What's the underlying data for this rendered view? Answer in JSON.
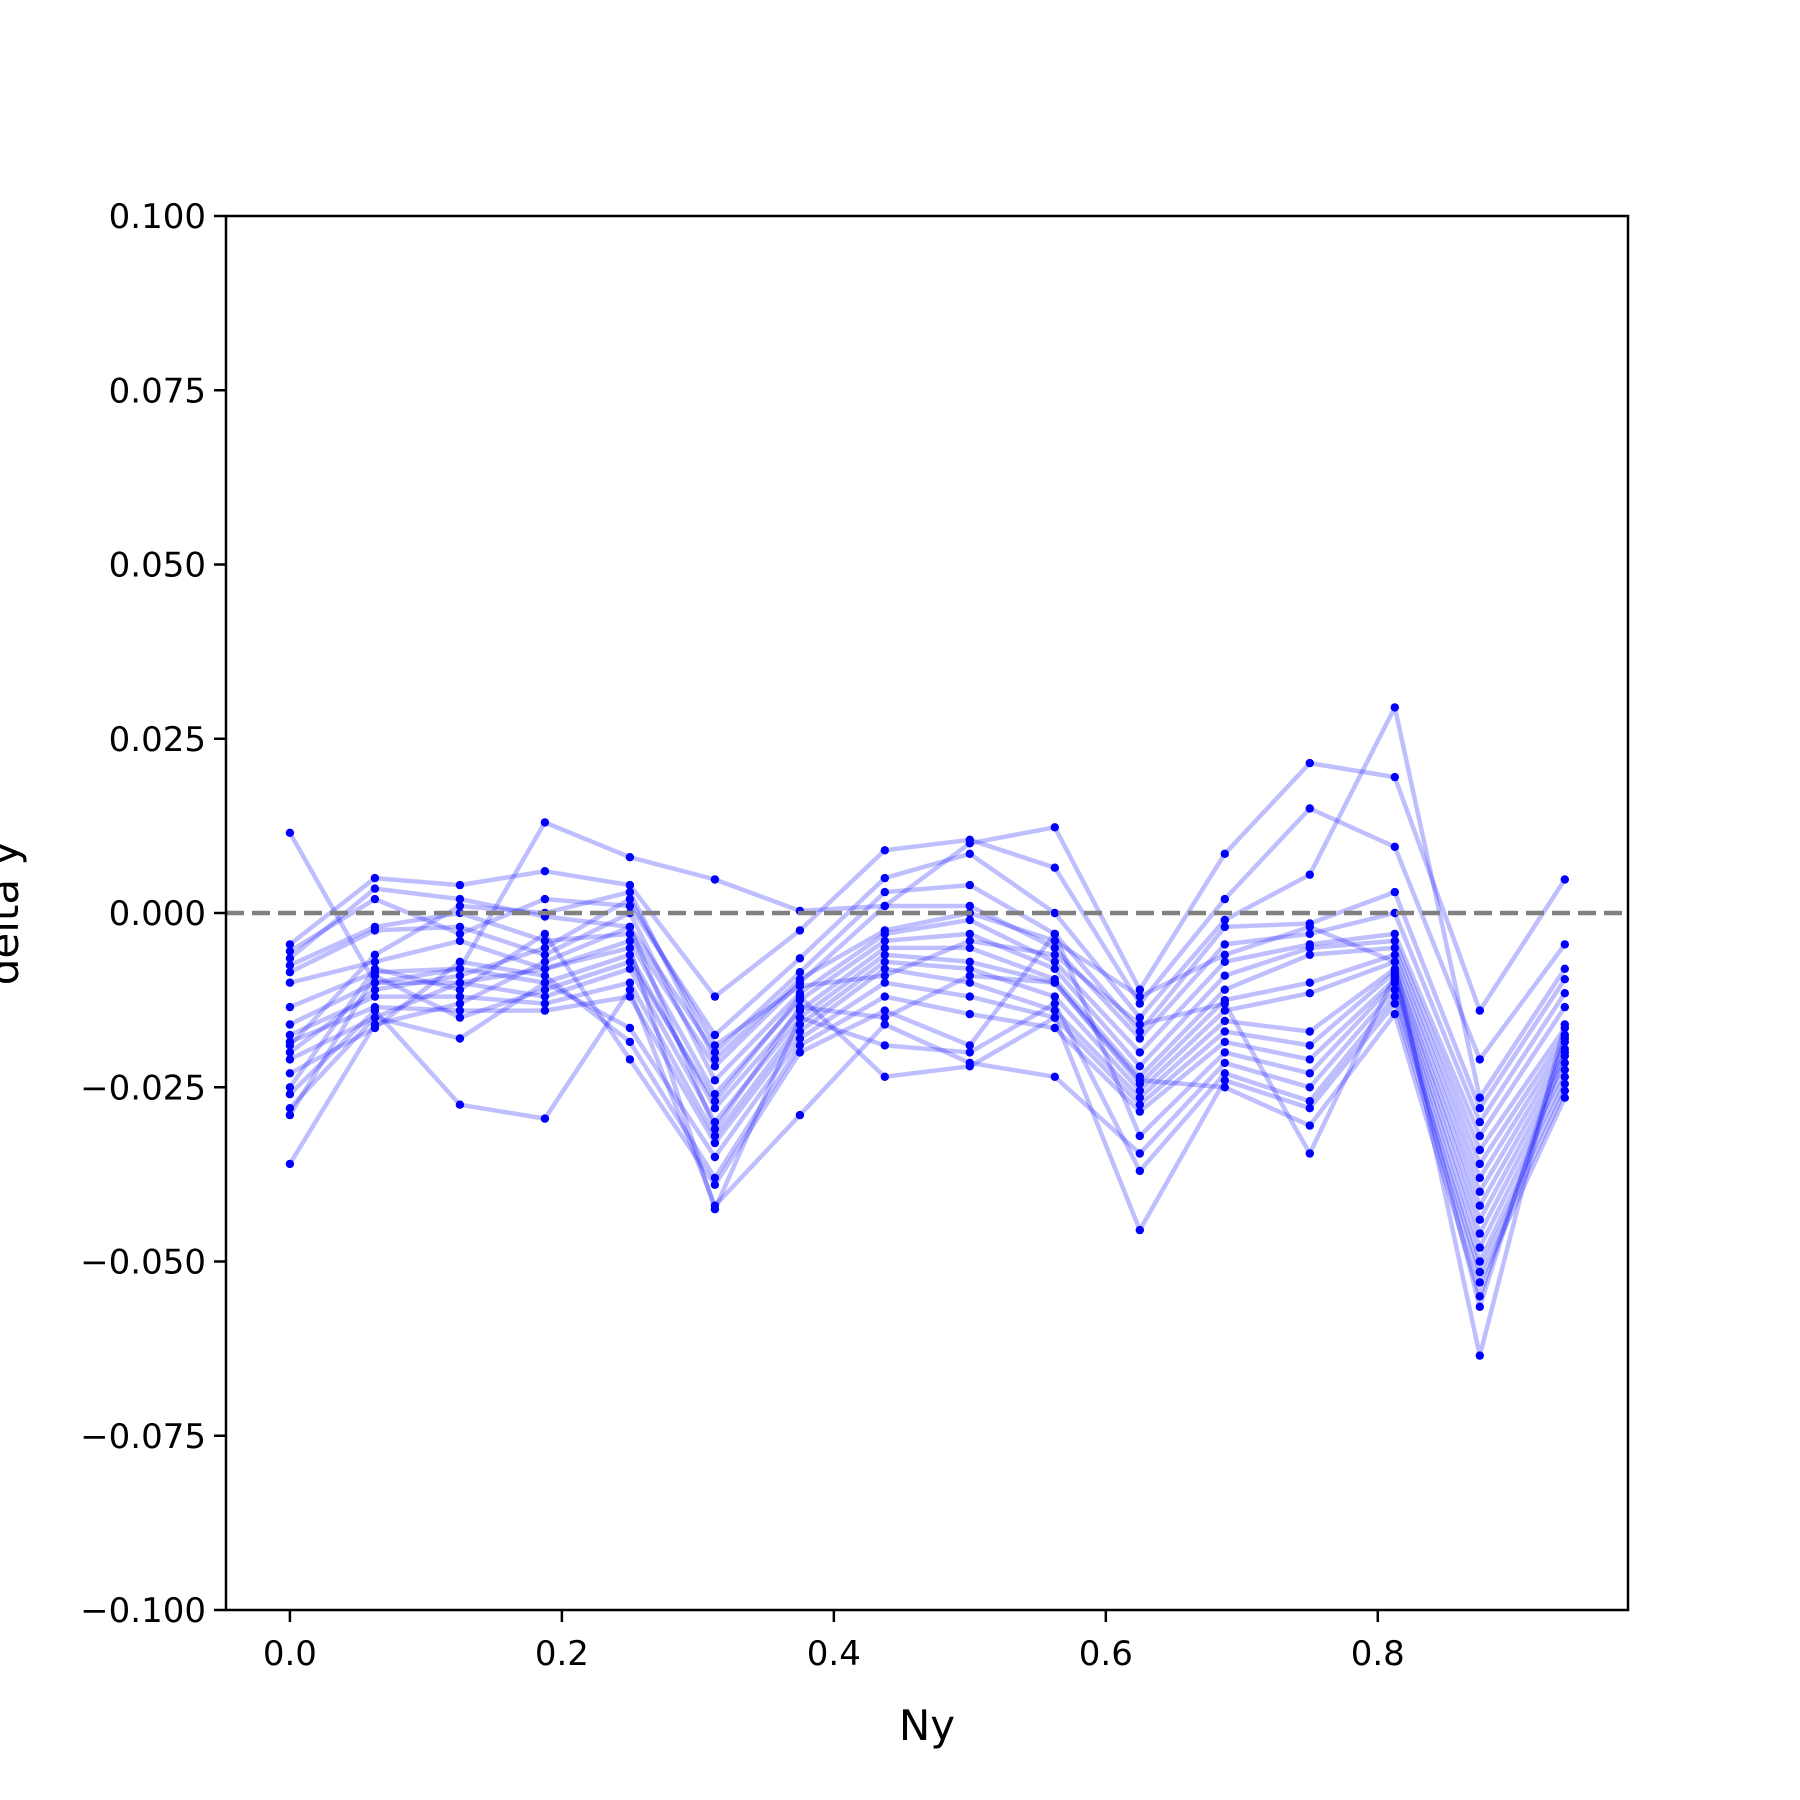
{
  "chart_data": {
    "type": "line",
    "xlabel": "Ny",
    "ylabel": "delta y",
    "xlim": [
      -0.047,
      0.984
    ],
    "ylim": [
      -0.1,
      0.1
    ],
    "x_ticks": [
      0.0,
      0.2,
      0.4,
      0.6,
      0.8
    ],
    "x_tick_labels": [
      "0.0",
      "0.2",
      "0.4",
      "0.6",
      "0.8"
    ],
    "y_ticks": [
      -0.1,
      -0.075,
      -0.05,
      -0.025,
      0.0,
      0.025,
      0.05,
      0.075,
      0.1
    ],
    "y_tick_labels": [
      "−0.100",
      "−0.075",
      "−0.050",
      "−0.025",
      "0.000",
      "0.025",
      "0.050",
      "0.075",
      "0.100"
    ],
    "reference_line": {
      "y": 0.0,
      "style": "dashed",
      "color": "#808080"
    },
    "grid": false,
    "legend": "none",
    "line_color": "#0000ff",
    "line_alpha": 0.25,
    "marker_color": "#0000ff",
    "x": [
      0.0,
      0.0625,
      0.125,
      0.1875,
      0.25,
      0.3125,
      0.375,
      0.4375,
      0.5,
      0.5625,
      0.625,
      0.6875,
      0.75,
      0.8125,
      0.875,
      0.9375
    ],
    "series": [
      {
        "values": [
          0.0115,
          -0.01,
          -0.008,
          0.013,
          0.008,
          0.0048,
          0.0003,
          0.001,
          0.01,
          0.0123,
          -0.011,
          0.0085,
          0.0215,
          0.0195,
          -0.014,
          0.0048
        ]
      },
      {
        "values": [
          -0.0045,
          0.005,
          0.004,
          0.006,
          0.004,
          -0.012,
          -0.0025,
          0.009,
          0.0105,
          0.0065,
          -0.013,
          0.002,
          0.015,
          0.0095,
          -0.021,
          -0.0045
        ]
      },
      {
        "values": [
          -0.0055,
          0.002,
          -0.003,
          0.002,
          0.001,
          -0.0175,
          -0.0065,
          0.005,
          0.0085,
          0.0,
          -0.015,
          -0.001,
          0.0055,
          0.0295,
          -0.0265,
          -0.008
        ]
      },
      {
        "values": [
          -0.0065,
          0.0035,
          0.002,
          -0.0005,
          -0.002,
          -0.02,
          -0.0085,
          0.003,
          0.004,
          -0.003,
          -0.017,
          -0.002,
          -0.0015,
          0.003,
          -0.028,
          -0.0095
        ]
      },
      {
        "values": [
          -0.0075,
          -0.002,
          0.0,
          -0.004,
          -0.003,
          -0.022,
          -0.01,
          0.001,
          0.001,
          -0.005,
          -0.018,
          -0.0045,
          -0.003,
          0.0,
          -0.03,
          -0.0115
        ]
      },
      {
        "values": [
          -0.0085,
          -0.0025,
          -0.002,
          -0.006,
          0.0,
          -0.024,
          -0.0115,
          -0.003,
          -0.001,
          -0.007,
          -0.02,
          -0.007,
          -0.0045,
          -0.003,
          -0.032,
          -0.0135
        ]
      },
      {
        "values": [
          -0.01,
          -0.007,
          -0.004,
          -0.008,
          -0.004,
          -0.026,
          -0.0125,
          -0.004,
          -0.003,
          -0.008,
          -0.022,
          -0.009,
          -0.005,
          -0.004,
          -0.034,
          -0.0165
        ]
      },
      {
        "values": [
          -0.0135,
          -0.0085,
          -0.008,
          -0.01,
          -0.006,
          -0.028,
          -0.014,
          -0.005,
          -0.005,
          -0.0095,
          -0.0235,
          -0.011,
          -0.006,
          -0.005,
          -0.036,
          -0.0175
        ]
      },
      {
        "values": [
          -0.016,
          -0.01,
          -0.01,
          -0.012,
          -0.008,
          -0.03,
          -0.015,
          -0.006,
          -0.007,
          -0.01,
          -0.0245,
          -0.0125,
          -0.01,
          -0.006,
          -0.038,
          -0.0185
        ]
      },
      {
        "values": [
          -0.0175,
          -0.012,
          -0.012,
          -0.013,
          -0.01,
          -0.032,
          -0.016,
          -0.007,
          -0.008,
          -0.012,
          -0.0255,
          -0.014,
          -0.0115,
          -0.007,
          -0.04,
          -0.0195
        ]
      },
      {
        "values": [
          -0.0185,
          -0.0135,
          -0.014,
          -0.014,
          -0.012,
          -0.033,
          -0.017,
          -0.008,
          -0.01,
          -0.014,
          -0.0265,
          -0.0155,
          -0.017,
          -0.008,
          -0.042,
          -0.0205
        ]
      },
      {
        "values": [
          -0.021,
          -0.015,
          -0.018,
          -0.01,
          -0.0165,
          -0.035,
          -0.018,
          -0.01,
          -0.012,
          -0.015,
          -0.0275,
          -0.017,
          -0.019,
          -0.0085,
          -0.044,
          -0.0215
        ]
      },
      {
        "values": [
          -0.023,
          -0.0165,
          -0.007,
          -0.009,
          -0.0185,
          -0.038,
          -0.019,
          -0.012,
          -0.0145,
          -0.0165,
          -0.0285,
          -0.0185,
          -0.021,
          -0.0095,
          -0.046,
          -0.0225
        ]
      },
      {
        "values": [
          -0.025,
          -0.008,
          -0.011,
          -0.003,
          -0.021,
          -0.039,
          -0.02,
          -0.014,
          -0.019,
          -0.003,
          -0.032,
          -0.02,
          -0.023,
          -0.01,
          -0.048,
          -0.0235
        ]
      },
      {
        "values": [
          -0.026,
          -0.014,
          -0.0275,
          -0.0295,
          -0.011,
          -0.042,
          -0.029,
          -0.016,
          -0.0215,
          -0.0235,
          -0.0345,
          -0.0215,
          -0.025,
          -0.011,
          -0.05,
          -0.0245
        ]
      },
      {
        "values": [
          -0.028,
          -0.015,
          -0.01,
          -0.008,
          -0.005,
          -0.0425,
          -0.015,
          -0.019,
          -0.02,
          -0.013,
          -0.037,
          -0.023,
          -0.027,
          -0.012,
          -0.0515,
          -0.0255
        ]
      },
      {
        "values": [
          -0.029,
          -0.009,
          -0.015,
          -0.011,
          -0.007,
          -0.027,
          -0.012,
          -0.0235,
          -0.022,
          -0.015,
          -0.0455,
          -0.024,
          -0.028,
          -0.013,
          -0.053,
          -0.0265
        ]
      },
      {
        "values": [
          -0.036,
          -0.016,
          -0.013,
          -0.007,
          -0.002,
          -0.031,
          -0.0135,
          -0.015,
          -0.009,
          -0.01,
          -0.024,
          -0.025,
          -0.0305,
          -0.0145,
          -0.055,
          -0.02
        ]
      },
      {
        "values": [
          -0.02,
          -0.011,
          -0.009,
          -0.005,
          0.002,
          -0.019,
          -0.0105,
          -0.009,
          -0.004,
          -0.006,
          -0.016,
          -0.013,
          -0.0345,
          -0.009,
          -0.0565,
          -0.018
        ]
      },
      {
        "values": [
          -0.019,
          -0.006,
          0.001,
          0.0,
          0.003,
          -0.021,
          -0.0095,
          -0.0025,
          0.0,
          -0.004,
          -0.012,
          -0.006,
          -0.002,
          -0.007,
          -0.0635,
          -0.016
        ]
      }
    ]
  }
}
